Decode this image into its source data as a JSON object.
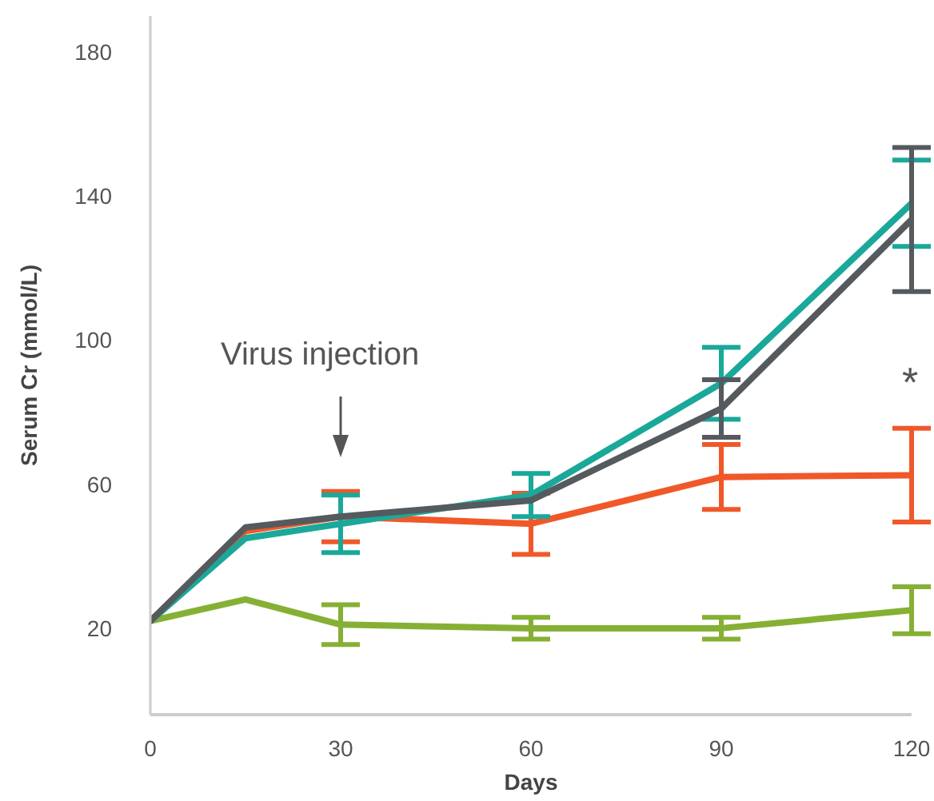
{
  "chart_data": {
    "type": "line",
    "xlabel": "Days",
    "ylabel": "Serum Cr (mmol/L)",
    "x": [
      0,
      15,
      30,
      60,
      90,
      120
    ],
    "xlim": [
      0,
      120
    ],
    "xticks": [
      0,
      30,
      60,
      90,
      120
    ],
    "ylim": [
      -4,
      190
    ],
    "yticks": [
      20,
      60,
      100,
      140,
      180
    ],
    "grid": false,
    "legend": false,
    "marker": "none",
    "line_style": "solid",
    "series": [
      {
        "color": "#86b034",
        "values": [
          22,
          28,
          21,
          20,
          20,
          25
        ],
        "errors": [
          null,
          null,
          5.5,
          3,
          3,
          6.5
        ]
      },
      {
        "color": "#f0582a",
        "values": [
          22,
          47,
          51,
          49,
          62,
          62.5
        ],
        "errors": [
          null,
          null,
          7,
          8.5,
          9,
          13
        ]
      },
      {
        "color": "#1aa89a",
        "values": [
          22,
          45,
          49,
          57,
          88,
          138
        ],
        "errors": [
          null,
          null,
          8,
          6,
          10,
          12
        ]
      },
      {
        "color": "#555a5e",
        "values": [
          22,
          48,
          51,
          55.5,
          81,
          133.5
        ],
        "errors": [
          null,
          null,
          null,
          null,
          8,
          20
        ]
      }
    ],
    "annotations": [
      "Virus injection",
      "*"
    ]
  }
}
